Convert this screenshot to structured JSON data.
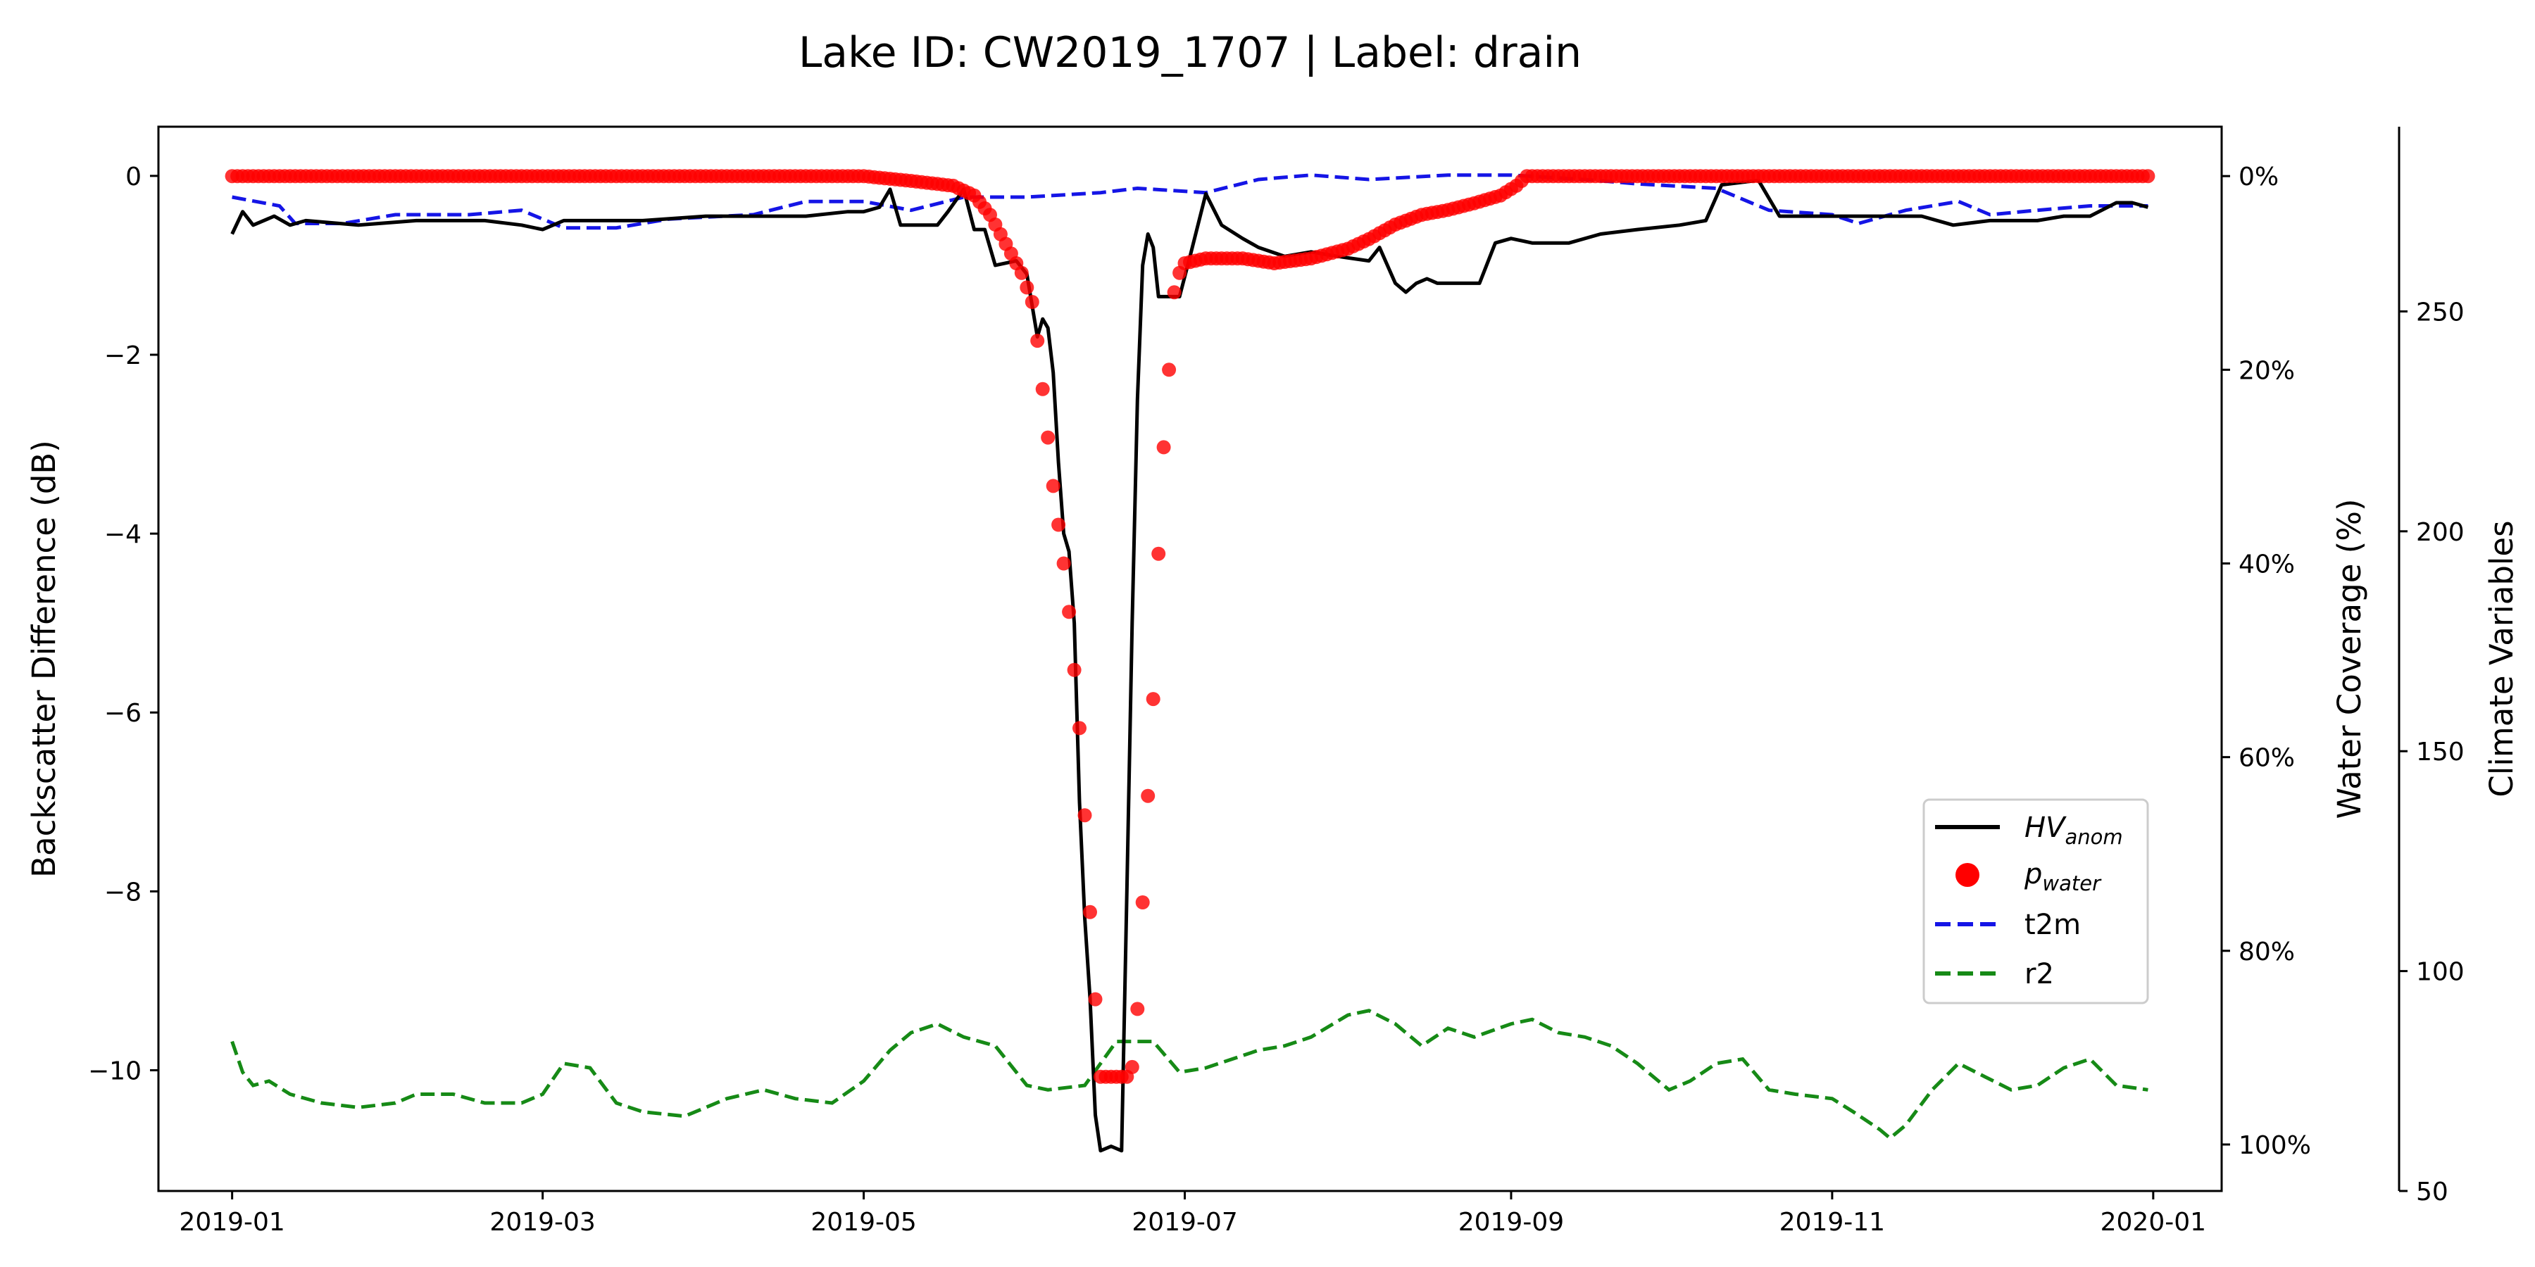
{
  "chart_data": {
    "type": "line",
    "title": "Lake ID: CW2019_1707 | Label: drain",
    "x_axis": {
      "ticks": [
        "2019-01",
        "2019-03",
        "2019-05",
        "2019-07",
        "2019-09",
        "2019-11",
        "2020-01"
      ],
      "range": [
        "2018-12-18",
        "2020-01-14"
      ]
    },
    "y_left": {
      "label": "Backscatter Difference (dB)",
      "ticks": [
        0,
        -2,
        -4,
        -6,
        -8,
        -10
      ],
      "ylim": [
        -11.35,
        0.55
      ]
    },
    "y_right": {
      "label": "Water Coverage (%)",
      "ticks": [
        "0%",
        "20%",
        "40%",
        "60%",
        "80%",
        "100%"
      ],
      "inverted": true,
      "ylim": [
        -5.1,
        104.8
      ]
    },
    "y_climate": {
      "label": "Climate Variables",
      "ticks": [
        "50",
        "100",
        "150",
        "200",
        "250"
      ],
      "ylim": [
        50,
        292
      ]
    },
    "legend": {
      "position": "center-right",
      "items": [
        {
          "id": "hv",
          "base": "HV",
          "sub": "anom",
          "color": "#000000",
          "style": "solid"
        },
        {
          "id": "pw",
          "base": "p",
          "sub": "water",
          "color": "#ff0000",
          "style": "marker"
        },
        {
          "id": "t2m",
          "text": "t2m",
          "color": "#1515e6",
          "style": "dashed"
        },
        {
          "id": "r2",
          "text": "r2",
          "color": "#168a16",
          "style": "dashed"
        }
      ]
    },
    "series": [
      {
        "name": "HV_anom",
        "axis": "left",
        "color": "#000000",
        "points": [
          [
            "2019-01-01",
            -0.65
          ],
          [
            "2019-01-03",
            -0.4
          ],
          [
            "2019-01-05",
            -0.55
          ],
          [
            "2019-01-09",
            -0.45
          ],
          [
            "2019-01-12",
            -0.55
          ],
          [
            "2019-01-15",
            -0.5
          ],
          [
            "2019-01-25",
            -0.55
          ],
          [
            "2019-02-05",
            -0.5
          ],
          [
            "2019-02-18",
            -0.5
          ],
          [
            "2019-02-25",
            -0.55
          ],
          [
            "2019-03-01",
            -0.6
          ],
          [
            "2019-03-05",
            -0.5
          ],
          [
            "2019-03-20",
            -0.5
          ],
          [
            "2019-04-01",
            -0.45
          ],
          [
            "2019-04-20",
            -0.45
          ],
          [
            "2019-04-28",
            -0.4
          ],
          [
            "2019-05-01",
            -0.4
          ],
          [
            "2019-05-04",
            -0.35
          ],
          [
            "2019-05-06",
            -0.15
          ],
          [
            "2019-05-08",
            -0.55
          ],
          [
            "2019-05-15",
            -0.55
          ],
          [
            "2019-05-17",
            -0.4
          ],
          [
            "2019-05-20",
            -0.15
          ],
          [
            "2019-05-22",
            -0.6
          ],
          [
            "2019-05-24",
            -0.6
          ],
          [
            "2019-05-26",
            -1.0
          ],
          [
            "2019-05-30",
            -0.95
          ],
          [
            "2019-06-01",
            -1.1
          ],
          [
            "2019-06-03",
            -1.8
          ],
          [
            "2019-06-04",
            -1.6
          ],
          [
            "2019-06-05",
            -1.7
          ],
          [
            "2019-06-06",
            -2.2
          ],
          [
            "2019-06-07",
            -3.2
          ],
          [
            "2019-06-08",
            -4.0
          ],
          [
            "2019-06-09",
            -4.2
          ],
          [
            "2019-06-10",
            -5.0
          ],
          [
            "2019-06-11",
            -7.0
          ],
          [
            "2019-06-12",
            -8.3
          ],
          [
            "2019-06-13",
            -9.2
          ],
          [
            "2019-06-14",
            -10.5
          ],
          [
            "2019-06-15",
            -10.9
          ],
          [
            "2019-06-17",
            -10.85
          ],
          [
            "2019-06-19",
            -10.9
          ],
          [
            "2019-06-20",
            -8.0
          ],
          [
            "2019-06-21",
            -5.0
          ],
          [
            "2019-06-22",
            -2.5
          ],
          [
            "2019-06-23",
            -1.0
          ],
          [
            "2019-06-24",
            -0.65
          ],
          [
            "2019-06-25",
            -0.8
          ],
          [
            "2019-06-26",
            -1.35
          ],
          [
            "2019-06-30",
            -1.35
          ],
          [
            "2019-07-02",
            -0.9
          ],
          [
            "2019-07-05",
            -0.2
          ],
          [
            "2019-07-08",
            -0.55
          ],
          [
            "2019-07-12",
            -0.7
          ],
          [
            "2019-07-15",
            -0.8
          ],
          [
            "2019-07-20",
            -0.9
          ],
          [
            "2019-07-25",
            -0.85
          ],
          [
            "2019-07-30",
            -0.9
          ],
          [
            "2019-08-05",
            -0.95
          ],
          [
            "2019-08-07",
            -0.8
          ],
          [
            "2019-08-10",
            -1.2
          ],
          [
            "2019-08-12",
            -1.3
          ],
          [
            "2019-08-14",
            -1.2
          ],
          [
            "2019-08-16",
            -1.15
          ],
          [
            "2019-08-18",
            -1.2
          ],
          [
            "2019-08-26",
            -1.2
          ],
          [
            "2019-08-29",
            -0.75
          ],
          [
            "2019-09-01",
            -0.7
          ],
          [
            "2019-09-05",
            -0.75
          ],
          [
            "2019-09-12",
            -0.75
          ],
          [
            "2019-09-18",
            -0.65
          ],
          [
            "2019-09-25",
            -0.6
          ],
          [
            "2019-10-03",
            -0.55
          ],
          [
            "2019-10-08",
            -0.5
          ],
          [
            "2019-10-11",
            -0.1
          ],
          [
            "2019-10-18",
            -0.05
          ],
          [
            "2019-10-22",
            -0.45
          ],
          [
            "2019-11-01",
            -0.45
          ],
          [
            "2019-11-10",
            -0.45
          ],
          [
            "2019-11-18",
            -0.45
          ],
          [
            "2019-11-24",
            -0.55
          ],
          [
            "2019-12-01",
            -0.5
          ],
          [
            "2019-12-10",
            -0.5
          ],
          [
            "2019-12-15",
            -0.45
          ],
          [
            "2019-12-20",
            -0.45
          ],
          [
            "2019-12-25",
            -0.3
          ],
          [
            "2019-12-28",
            -0.3
          ],
          [
            "2019-12-31",
            -0.35
          ]
        ]
      },
      {
        "name": "p_water",
        "axis": "right",
        "color": "#ff0000",
        "points": [
          [
            "2019-01-01",
            0
          ],
          [
            "2019-05-01",
            0
          ],
          [
            "2019-05-10",
            0.5
          ],
          [
            "2019-05-18",
            1
          ],
          [
            "2019-05-22",
            2
          ],
          [
            "2019-05-25",
            4
          ],
          [
            "2019-05-27",
            6
          ],
          [
            "2019-05-29",
            8
          ],
          [
            "2019-05-31",
            10
          ],
          [
            "2019-06-02",
            13
          ],
          [
            "2019-06-03",
            17
          ],
          [
            "2019-06-04",
            22
          ],
          [
            "2019-06-05",
            27
          ],
          [
            "2019-06-06",
            32
          ],
          [
            "2019-06-07",
            36
          ],
          [
            "2019-06-08",
            40
          ],
          [
            "2019-06-09",
            45
          ],
          [
            "2019-06-10",
            51
          ],
          [
            "2019-06-11",
            57
          ],
          [
            "2019-06-12",
            66
          ],
          [
            "2019-06-13",
            76
          ],
          [
            "2019-06-14",
            85
          ],
          [
            "2019-06-15",
            93
          ],
          [
            "2019-06-20",
            93
          ],
          [
            "2019-06-21",
            92
          ],
          [
            "2019-06-22",
            86
          ],
          [
            "2019-06-23",
            75
          ],
          [
            "2019-06-24",
            64
          ],
          [
            "2019-06-25",
            54
          ],
          [
            "2019-06-26",
            39
          ],
          [
            "2019-06-27",
            28
          ],
          [
            "2019-06-28",
            20
          ],
          [
            "2019-06-29",
            12
          ],
          [
            "2019-06-30",
            10
          ],
          [
            "2019-07-01",
            9
          ],
          [
            "2019-07-05",
            8.5
          ],
          [
            "2019-07-12",
            8.5
          ],
          [
            "2019-07-18",
            9
          ],
          [
            "2019-07-25",
            8.5
          ],
          [
            "2019-08-01",
            7.5
          ],
          [
            "2019-08-05",
            6.5
          ],
          [
            "2019-08-10",
            5
          ],
          [
            "2019-08-15",
            4
          ],
          [
            "2019-08-20",
            3.5
          ],
          [
            "2019-08-25",
            2.8
          ],
          [
            "2019-08-30",
            2
          ],
          [
            "2019-09-02",
            1
          ],
          [
            "2019-09-04",
            0
          ],
          [
            "2019-12-31",
            0
          ]
        ]
      },
      {
        "name": "t2m",
        "axis": "climate",
        "color": "#1515e6",
        "points": [
          [
            "2019-01-01",
            276
          ],
          [
            "2019-01-10",
            274
          ],
          [
            "2019-01-13",
            270
          ],
          [
            "2019-01-22",
            270
          ],
          [
            "2019-02-01",
            272
          ],
          [
            "2019-02-15",
            272
          ],
          [
            "2019-02-25",
            273
          ],
          [
            "2019-03-05",
            269
          ],
          [
            "2019-03-15",
            269
          ],
          [
            "2019-03-25",
            271
          ],
          [
            "2019-04-10",
            272
          ],
          [
            "2019-04-20",
            275
          ],
          [
            "2019-05-01",
            275
          ],
          [
            "2019-05-10",
            273
          ],
          [
            "2019-05-20",
            276
          ],
          [
            "2019-06-01",
            276
          ],
          [
            "2019-06-15",
            277
          ],
          [
            "2019-06-22",
            278
          ],
          [
            "2019-07-05",
            277
          ],
          [
            "2019-07-15",
            280
          ],
          [
            "2019-07-25",
            281
          ],
          [
            "2019-08-05",
            280
          ],
          [
            "2019-08-20",
            281
          ],
          [
            "2019-09-01",
            281
          ],
          [
            "2019-09-15",
            280
          ],
          [
            "2019-09-25",
            279
          ],
          [
            "2019-10-10",
            278
          ],
          [
            "2019-10-20",
            273
          ],
          [
            "2019-11-01",
            272
          ],
          [
            "2019-11-06",
            270
          ],
          [
            "2019-11-15",
            273
          ],
          [
            "2019-11-25",
            275
          ],
          [
            "2019-12-01",
            272
          ],
          [
            "2019-12-10",
            273
          ],
          [
            "2019-12-20",
            274
          ],
          [
            "2019-12-31",
            274
          ]
        ]
      },
      {
        "name": "r2",
        "axis": "climate",
        "color": "#168a16",
        "points": [
          [
            "2019-01-01",
            84
          ],
          [
            "2019-01-03",
            77
          ],
          [
            "2019-01-05",
            74
          ],
          [
            "2019-01-08",
            75
          ],
          [
            "2019-01-12",
            72
          ],
          [
            "2019-01-18",
            70
          ],
          [
            "2019-01-25",
            69
          ],
          [
            "2019-02-01",
            70
          ],
          [
            "2019-02-05",
            72
          ],
          [
            "2019-02-12",
            72
          ],
          [
            "2019-02-18",
            70
          ],
          [
            "2019-02-25",
            70
          ],
          [
            "2019-03-01",
            72
          ],
          [
            "2019-03-05",
            79
          ],
          [
            "2019-03-10",
            78
          ],
          [
            "2019-03-15",
            70
          ],
          [
            "2019-03-20",
            68
          ],
          [
            "2019-03-28",
            67
          ],
          [
            "2019-04-05",
            71
          ],
          [
            "2019-04-12",
            73
          ],
          [
            "2019-04-18",
            71
          ],
          [
            "2019-04-25",
            70
          ],
          [
            "2019-05-01",
            75
          ],
          [
            "2019-05-06",
            82
          ],
          [
            "2019-05-10",
            86
          ],
          [
            "2019-05-15",
            88
          ],
          [
            "2019-05-20",
            85
          ],
          [
            "2019-05-26",
            83
          ],
          [
            "2019-06-01",
            74
          ],
          [
            "2019-06-05",
            73
          ],
          [
            "2019-06-12",
            74
          ],
          [
            "2019-06-18",
            84
          ],
          [
            "2019-06-25",
            84
          ],
          [
            "2019-06-30",
            77
          ],
          [
            "2019-07-05",
            78
          ],
          [
            "2019-07-10",
            80
          ],
          [
            "2019-07-15",
            82
          ],
          [
            "2019-07-20",
            83
          ],
          [
            "2019-07-25",
            85
          ],
          [
            "2019-08-01",
            90
          ],
          [
            "2019-08-05",
            91
          ],
          [
            "2019-08-10",
            88
          ],
          [
            "2019-08-15",
            83
          ],
          [
            "2019-08-20",
            87
          ],
          [
            "2019-08-25",
            85
          ],
          [
            "2019-09-01",
            88
          ],
          [
            "2019-09-05",
            89
          ],
          [
            "2019-09-10",
            86
          ],
          [
            "2019-09-15",
            85
          ],
          [
            "2019-09-20",
            83
          ],
          [
            "2019-09-25",
            79
          ],
          [
            "2019-10-01",
            73
          ],
          [
            "2019-10-05",
            75
          ],
          [
            "2019-10-10",
            79
          ],
          [
            "2019-10-15",
            80
          ],
          [
            "2019-10-20",
            73
          ],
          [
            "2019-10-25",
            72
          ],
          [
            "2019-11-01",
            71
          ],
          [
            "2019-11-05",
            68
          ],
          [
            "2019-11-10",
            64
          ],
          [
            "2019-11-12",
            62
          ],
          [
            "2019-11-15",
            65
          ],
          [
            "2019-11-20",
            73
          ],
          [
            "2019-11-25",
            79
          ],
          [
            "2019-11-30",
            76
          ],
          [
            "2019-12-05",
            73
          ],
          [
            "2019-12-10",
            74
          ],
          [
            "2019-12-15",
            78
          ],
          [
            "2019-12-20",
            80
          ],
          [
            "2019-12-25",
            74
          ],
          [
            "2019-12-31",
            73
          ]
        ]
      }
    ]
  }
}
